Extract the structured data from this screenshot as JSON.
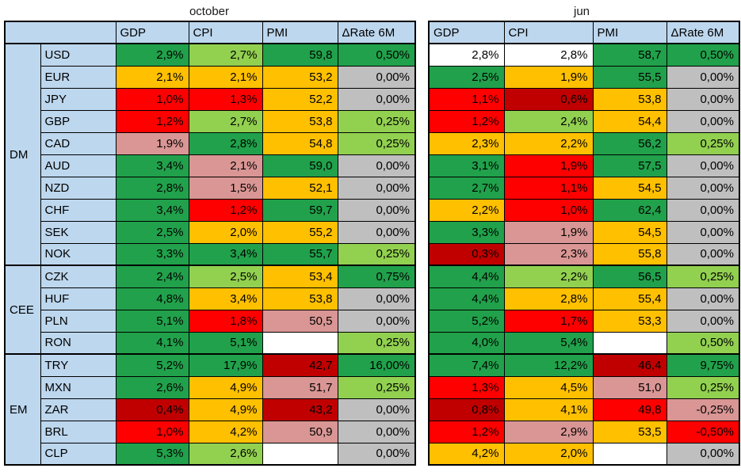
{
  "palette": {
    "green": "#21A14B",
    "lightgreen": "#92D050",
    "yellow": "#FFC000",
    "red": "#FF0000",
    "darkred": "#C00000",
    "pink": "#D99694",
    "gray": "#BFBFBF",
    "white": "#FFFFFF",
    "header_blue": "#BDD7EE",
    "border": "#000000"
  },
  "chart_data": {
    "type": "heatmap",
    "panel_titles": {
      "left": "october",
      "right": "jun"
    },
    "columns": [
      "GDP",
      "CPI",
      "PMI",
      "ΔRate 6M"
    ],
    "row_groups": [
      {
        "label": "DM",
        "rows": [
          {
            "currency": "USD",
            "october": [
              {
                "v": "2,9%",
                "c": "green"
              },
              {
                "v": "2,7%",
                "c": "lightgreen"
              },
              {
                "v": "59,8",
                "c": "green"
              },
              {
                "v": "0,50%",
                "c": "green"
              }
            ],
            "jun": [
              {
                "v": "2,8%",
                "c": "white"
              },
              {
                "v": "2,8%",
                "c": "white"
              },
              {
                "v": "58,7",
                "c": "green"
              },
              {
                "v": "0,50%",
                "c": "green"
              }
            ]
          },
          {
            "currency": "EUR",
            "october": [
              {
                "v": "2,1%",
                "c": "yellow"
              },
              {
                "v": "2,1%",
                "c": "yellow"
              },
              {
                "v": "53,2",
                "c": "yellow"
              },
              {
                "v": "0,00%",
                "c": "gray"
              }
            ],
            "jun": [
              {
                "v": "2,5%",
                "c": "green"
              },
              {
                "v": "1,9%",
                "c": "yellow"
              },
              {
                "v": "55,5",
                "c": "green"
              },
              {
                "v": "0,00%",
                "c": "gray"
              }
            ]
          },
          {
            "currency": "JPY",
            "october": [
              {
                "v": "1,0%",
                "c": "red"
              },
              {
                "v": "1,3%",
                "c": "red"
              },
              {
                "v": "52,2",
                "c": "yellow"
              },
              {
                "v": "0,00%",
                "c": "gray"
              }
            ],
            "jun": [
              {
                "v": "1,1%",
                "c": "red"
              },
              {
                "v": "0,6%",
                "c": "darkred"
              },
              {
                "v": "53,8",
                "c": "yellow"
              },
              {
                "v": "0,00%",
                "c": "gray"
              }
            ]
          },
          {
            "currency": "GBP",
            "october": [
              {
                "v": "1,2%",
                "c": "red"
              },
              {
                "v": "2,7%",
                "c": "lightgreen"
              },
              {
                "v": "53,8",
                "c": "yellow"
              },
              {
                "v": "0,25%",
                "c": "lightgreen"
              }
            ],
            "jun": [
              {
                "v": "1,2%",
                "c": "red"
              },
              {
                "v": "2,4%",
                "c": "lightgreen"
              },
              {
                "v": "54,4",
                "c": "yellow"
              },
              {
                "v": "0,00%",
                "c": "gray"
              }
            ]
          },
          {
            "currency": "CAD",
            "october": [
              {
                "v": "1,9%",
                "c": "pink"
              },
              {
                "v": "2,8%",
                "c": "green"
              },
              {
                "v": "54,8",
                "c": "yellow"
              },
              {
                "v": "0,25%",
                "c": "lightgreen"
              }
            ],
            "jun": [
              {
                "v": "2,3%",
                "c": "yellow"
              },
              {
                "v": "2,2%",
                "c": "yellow"
              },
              {
                "v": "56,2",
                "c": "green"
              },
              {
                "v": "0,25%",
                "c": "lightgreen"
              }
            ]
          },
          {
            "currency": "AUD",
            "october": [
              {
                "v": "3,4%",
                "c": "green"
              },
              {
                "v": "2,1%",
                "c": "pink"
              },
              {
                "v": "59,0",
                "c": "green"
              },
              {
                "v": "0,00%",
                "c": "gray"
              }
            ],
            "jun": [
              {
                "v": "3,1%",
                "c": "green"
              },
              {
                "v": "1,9%",
                "c": "red"
              },
              {
                "v": "57,5",
                "c": "green"
              },
              {
                "v": "0,00%",
                "c": "gray"
              }
            ]
          },
          {
            "currency": "NZD",
            "october": [
              {
                "v": "2,8%",
                "c": "green"
              },
              {
                "v": "1,5%",
                "c": "pink"
              },
              {
                "v": "52,1",
                "c": "yellow"
              },
              {
                "v": "0,00%",
                "c": "gray"
              }
            ],
            "jun": [
              {
                "v": "2,7%",
                "c": "green"
              },
              {
                "v": "1,1%",
                "c": "red"
              },
              {
                "v": "54,5",
                "c": "yellow"
              },
              {
                "v": "0,00%",
                "c": "gray"
              }
            ]
          },
          {
            "currency": "CHF",
            "october": [
              {
                "v": "3,4%",
                "c": "green"
              },
              {
                "v": "1,2%",
                "c": "red"
              },
              {
                "v": "59,7",
                "c": "green"
              },
              {
                "v": "0,00%",
                "c": "gray"
              }
            ],
            "jun": [
              {
                "v": "2,2%",
                "c": "yellow"
              },
              {
                "v": "1,0%",
                "c": "red"
              },
              {
                "v": "62,4",
                "c": "green"
              },
              {
                "v": "0,00%",
                "c": "gray"
              }
            ]
          },
          {
            "currency": "SEK",
            "october": [
              {
                "v": "2,5%",
                "c": "green"
              },
              {
                "v": "2,0%",
                "c": "yellow"
              },
              {
                "v": "55,2",
                "c": "yellow"
              },
              {
                "v": "0,00%",
                "c": "gray"
              }
            ],
            "jun": [
              {
                "v": "3,3%",
                "c": "green"
              },
              {
                "v": "1,9%",
                "c": "pink"
              },
              {
                "v": "54,5",
                "c": "yellow"
              },
              {
                "v": "0,00%",
                "c": "gray"
              }
            ]
          },
          {
            "currency": "NOK",
            "october": [
              {
                "v": "3,3%",
                "c": "green"
              },
              {
                "v": "3,4%",
                "c": "green"
              },
              {
                "v": "55,7",
                "c": "green"
              },
              {
                "v": "0,25%",
                "c": "lightgreen"
              }
            ],
            "jun": [
              {
                "v": "0,3%",
                "c": "darkred"
              },
              {
                "v": "2,3%",
                "c": "pink"
              },
              {
                "v": "55,8",
                "c": "yellow"
              },
              {
                "v": "0,00%",
                "c": "gray"
              }
            ]
          }
        ]
      },
      {
        "label": "CEE",
        "rows": [
          {
            "currency": "CZK",
            "october": [
              {
                "v": "2,4%",
                "c": "green"
              },
              {
                "v": "2,5%",
                "c": "lightgreen"
              },
              {
                "v": "53,4",
                "c": "yellow"
              },
              {
                "v": "0,75%",
                "c": "green"
              }
            ],
            "jun": [
              {
                "v": "4,4%",
                "c": "green"
              },
              {
                "v": "2,2%",
                "c": "lightgreen"
              },
              {
                "v": "56,5",
                "c": "green"
              },
              {
                "v": "0,25%",
                "c": "lightgreen"
              }
            ]
          },
          {
            "currency": "HUF",
            "october": [
              {
                "v": "4,8%",
                "c": "green"
              },
              {
                "v": "3,4%",
                "c": "yellow"
              },
              {
                "v": "53,8",
                "c": "yellow"
              },
              {
                "v": "0,00%",
                "c": "gray"
              }
            ],
            "jun": [
              {
                "v": "4,4%",
                "c": "green"
              },
              {
                "v": "2,8%",
                "c": "yellow"
              },
              {
                "v": "55,4",
                "c": "yellow"
              },
              {
                "v": "0,00%",
                "c": "gray"
              }
            ]
          },
          {
            "currency": "PLN",
            "october": [
              {
                "v": "5,1%",
                "c": "green"
              },
              {
                "v": "1,8%",
                "c": "red"
              },
              {
                "v": "50,5",
                "c": "pink"
              },
              {
                "v": "0,00%",
                "c": "gray"
              }
            ],
            "jun": [
              {
                "v": "5,2%",
                "c": "green"
              },
              {
                "v": "1,7%",
                "c": "red"
              },
              {
                "v": "53,3",
                "c": "yellow"
              },
              {
                "v": "0,00%",
                "c": "gray"
              }
            ]
          },
          {
            "currency": "RON",
            "october": [
              {
                "v": "4,1%",
                "c": "green"
              },
              {
                "v": "5,1%",
                "c": "green"
              },
              {
                "v": "",
                "c": "white"
              },
              {
                "v": "0,25%",
                "c": "lightgreen"
              }
            ],
            "jun": [
              {
                "v": "4,0%",
                "c": "green"
              },
              {
                "v": "5,4%",
                "c": "green"
              },
              {
                "v": "",
                "c": "white"
              },
              {
                "v": "0,50%",
                "c": "lightgreen"
              }
            ]
          }
        ]
      },
      {
        "label": "EM",
        "rows": [
          {
            "currency": "TRY",
            "october": [
              {
                "v": "5,2%",
                "c": "green"
              },
              {
                "v": "17,9%",
                "c": "green"
              },
              {
                "v": "42,7",
                "c": "darkred"
              },
              {
                "v": "16,00%",
                "c": "green"
              }
            ],
            "jun": [
              {
                "v": "7,4%",
                "c": "green"
              },
              {
                "v": "12,2%",
                "c": "green"
              },
              {
                "v": "46,4",
                "c": "darkred"
              },
              {
                "v": "9,75%",
                "c": "green"
              }
            ]
          },
          {
            "currency": "MXN",
            "october": [
              {
                "v": "2,6%",
                "c": "green"
              },
              {
                "v": "4,9%",
                "c": "yellow"
              },
              {
                "v": "51,7",
                "c": "pink"
              },
              {
                "v": "0,25%",
                "c": "lightgreen"
              }
            ],
            "jun": [
              {
                "v": "1,3%",
                "c": "red"
              },
              {
                "v": "4,5%",
                "c": "yellow"
              },
              {
                "v": "51,0",
                "c": "pink"
              },
              {
                "v": "0,25%",
                "c": "lightgreen"
              }
            ]
          },
          {
            "currency": "ZAR",
            "october": [
              {
                "v": "0,4%",
                "c": "darkred"
              },
              {
                "v": "4,9%",
                "c": "yellow"
              },
              {
                "v": "43,2",
                "c": "darkred"
              },
              {
                "v": "0,00%",
                "c": "gray"
              }
            ],
            "jun": [
              {
                "v": "0,8%",
                "c": "darkred"
              },
              {
                "v": "4,1%",
                "c": "yellow"
              },
              {
                "v": "49,8",
                "c": "red"
              },
              {
                "v": "-0,25%",
                "c": "pink"
              }
            ]
          },
          {
            "currency": "BRL",
            "october": [
              {
                "v": "1,0%",
                "c": "red"
              },
              {
                "v": "4,2%",
                "c": "yellow"
              },
              {
                "v": "50,9",
                "c": "pink"
              },
              {
                "v": "0,00%",
                "c": "gray"
              }
            ],
            "jun": [
              {
                "v": "1,2%",
                "c": "red"
              },
              {
                "v": "2,9%",
                "c": "pink"
              },
              {
                "v": "53,5",
                "c": "yellow"
              },
              {
                "v": "-0,50%",
                "c": "red"
              }
            ]
          },
          {
            "currency": "CLP",
            "october": [
              {
                "v": "5,3%",
                "c": "green"
              },
              {
                "v": "2,6%",
                "c": "lightgreen"
              },
              {
                "v": "",
                "c": "white"
              },
              {
                "v": "0,00%",
                "c": "gray"
              }
            ],
            "jun": [
              {
                "v": "4,2%",
                "c": "yellow"
              },
              {
                "v": "2,0%",
                "c": "yellow"
              },
              {
                "v": "",
                "c": "white"
              },
              {
                "v": "0,00%",
                "c": "gray"
              }
            ]
          }
        ]
      }
    ]
  }
}
